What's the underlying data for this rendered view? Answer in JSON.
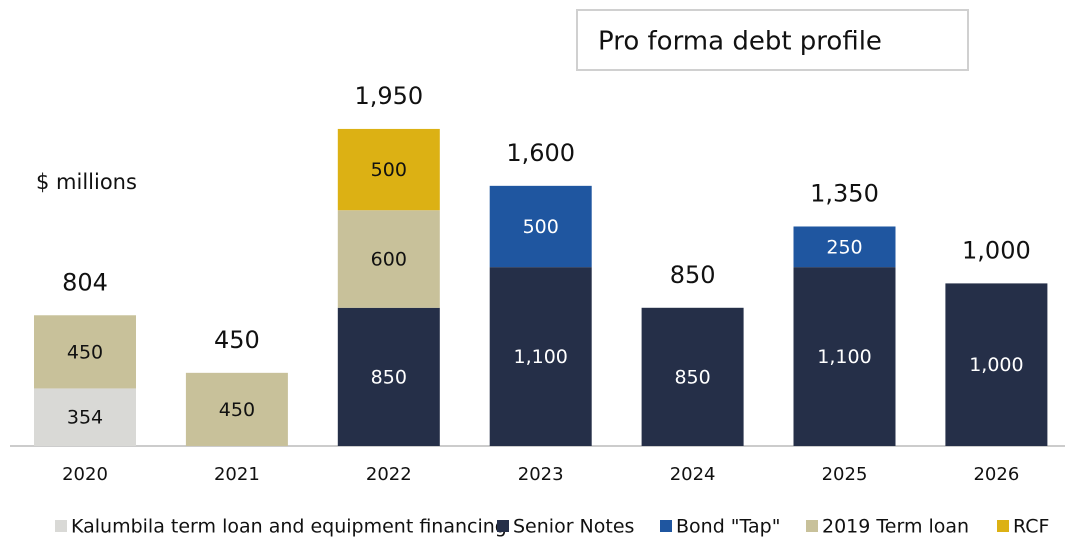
{
  "chart_data": {
    "type": "bar",
    "stacked": true,
    "title": "Pro forma debt profile",
    "annotation": "$ millions",
    "categories": [
      "2020",
      "2021",
      "2022",
      "2023",
      "2024",
      "2025",
      "2026"
    ],
    "series": [
      {
        "name": "Kalumbila term loan and equipment financing",
        "color": "#d9d9d6",
        "values": [
          354,
          null,
          null,
          null,
          null,
          null,
          null
        ]
      },
      {
        "name": "Senior Notes",
        "color": "#252f48",
        "values": [
          null,
          null,
          850,
          1100,
          850,
          1100,
          1000
        ],
        "value_labels": [
          null,
          null,
          "850",
          "1,100",
          "850",
          "1,100",
          "1,000"
        ]
      },
      {
        "name": "Bond \"Tap\"",
        "color": "#1f56a0",
        "values": [
          null,
          null,
          null,
          500,
          null,
          250,
          null
        ]
      },
      {
        "name": "2019 Term loan",
        "color": "#c8c19a",
        "values": [
          450,
          450,
          600,
          null,
          null,
          null,
          null
        ]
      },
      {
        "name": "RCF",
        "color": "#dcb114",
        "values": [
          null,
          null,
          500,
          null,
          null,
          null,
          null
        ]
      }
    ],
    "totals": [
      804,
      450,
      1950,
      1600,
      850,
      1350,
      1000
    ],
    "total_labels": [
      "804",
      "450",
      "1,950",
      "1,600",
      "850",
      "1,350",
      "1,000"
    ]
  }
}
